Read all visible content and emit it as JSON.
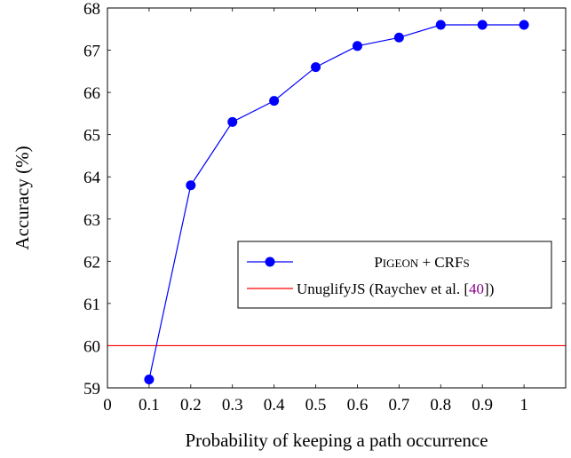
{
  "chart_data": {
    "type": "line",
    "xlabel": "Probability of keeping a path occurrence",
    "ylabel": "Accuracy (%)",
    "xlim": [
      0,
      1.1
    ],
    "ylim": [
      59,
      68
    ],
    "x_ticks": [
      "0",
      "0.1",
      "0.2",
      "0.3",
      "0.4",
      "0.5",
      "0.6",
      "0.7",
      "0.8",
      "0.9",
      "1"
    ],
    "y_ticks": [
      "59",
      "60",
      "61",
      "62",
      "63",
      "64",
      "65",
      "66",
      "67",
      "68"
    ],
    "grid": false,
    "legend_position": "right",
    "series": [
      {
        "name_parts": {
          "p": "P",
          "igeon": "IGEON",
          "plus": " + CRF",
          "s": "S"
        },
        "color": "#0000ff",
        "marker": "circle",
        "x": [
          0.1,
          0.2,
          0.3,
          0.4,
          0.5,
          0.6,
          0.7,
          0.8,
          0.9,
          1.0
        ],
        "y": [
          59.2,
          63.8,
          65.3,
          65.8,
          66.6,
          67.1,
          67.3,
          67.6,
          67.6,
          67.6
        ]
      },
      {
        "name_parts": {
          "before": "UnuglifyJS (Raychev et al. [",
          "ref": "40",
          "after": "])"
        },
        "color": "#ff0000",
        "ref_color": "#8b008b",
        "type": "hline",
        "y": 60
      }
    ]
  }
}
